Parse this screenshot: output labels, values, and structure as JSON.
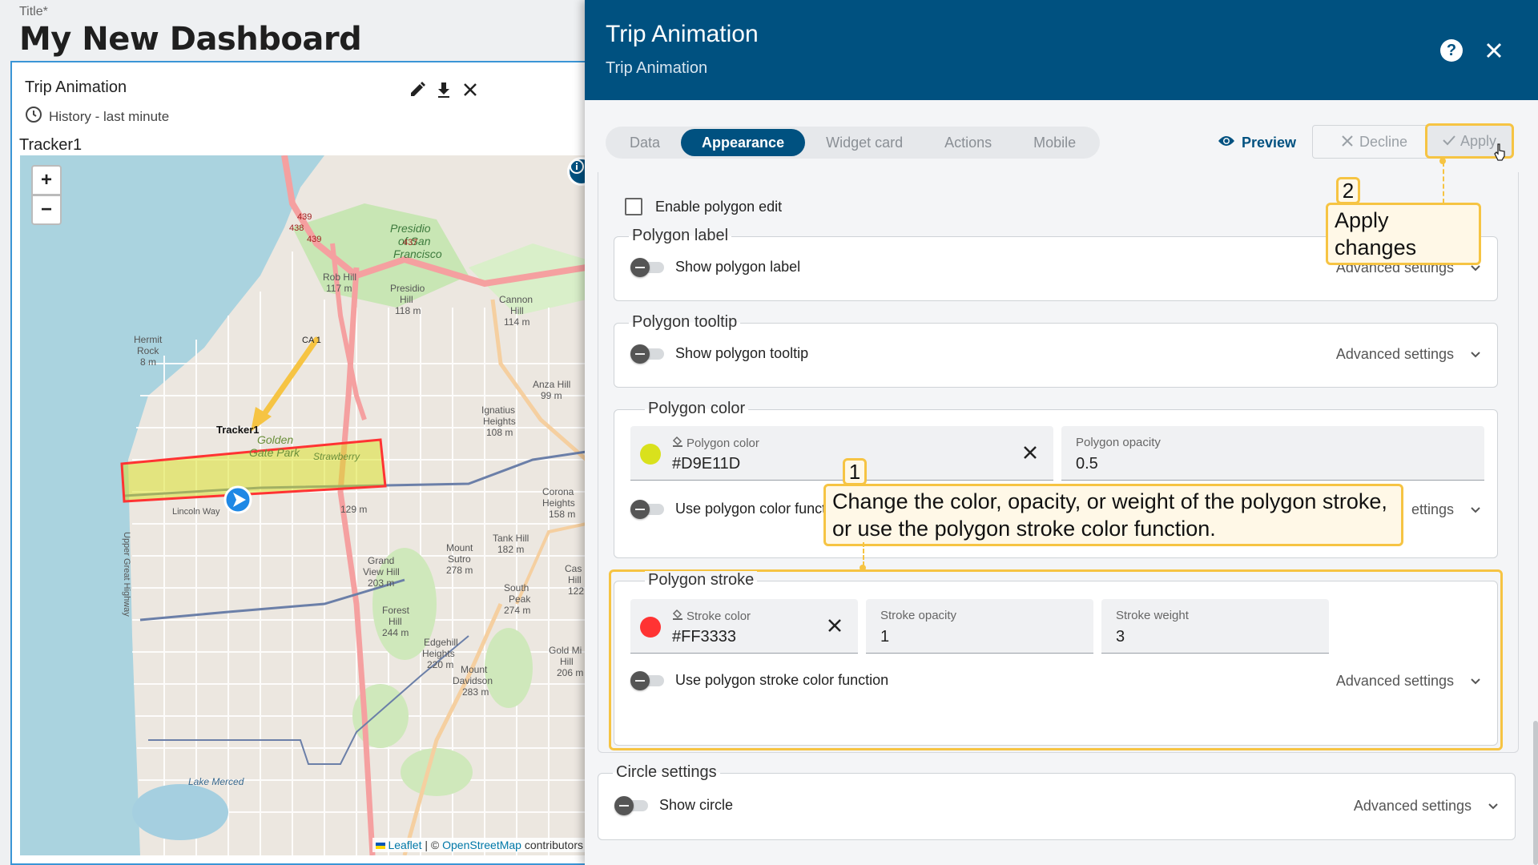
{
  "dashboard": {
    "title_label": "Title*",
    "title": "My New Dashboard"
  },
  "widget": {
    "title": "Trip Animation",
    "timewindow": "History - last minute",
    "entity_label": "Tracker1",
    "tools": [
      "edit-icon",
      "download-icon",
      "close-icon"
    ]
  },
  "map": {
    "zoom_in": "+",
    "zoom_out": "−",
    "polygon_label": "Tracker1",
    "polygon_fill": "#D9E11D",
    "polygon_stroke": "#FF3333",
    "labels": {
      "presidio": "Presidio",
      "of_san": "of San",
      "francisco": "Francisco",
      "rob_hill": "Rob Hill",
      "rob_hill_h": "117 m",
      "presidio_hill": "Presidio",
      "presidio_hill2": "Hill",
      "presidio_hill_h": "118 m",
      "cannon_hill": "Cannon",
      "cannon_hill2": "Hill",
      "cannon_hill_h": "114 m",
      "hermit": "Hermit",
      "rock": "Rock",
      "rock_h": "8 m",
      "anza_hill": "Anza Hill",
      "anza_hill_h": "99 m",
      "ignatius": "Ignatius",
      "heights": "Heights",
      "heights_h": "108 m",
      "golden": "Golden",
      "gate_park": "Gate Park",
      "lincoln_way": "Lincoln Way",
      "corona": "Corona",
      "corona_heights": "Heights",
      "corona_h": "158 m",
      "tank_hill": "Tank Hill",
      "tank_hill_h": "182 m",
      "mount_sutro": "Mount",
      "mount_sutro2": "Sutro",
      "mount_sutro_h": "278 m",
      "grand_view": "Grand",
      "grand_view2": "View Hill",
      "grand_view_h": "203 m",
      "south_peak": "South",
      "south_peak2": "Peak",
      "south_peak_h": "274 m",
      "forest_hill": "Forest",
      "forest_hill2": "Hill",
      "forest_hill_h": "244 m",
      "edgehill": "Edgehill",
      "edgehill2": "Heights",
      "edgehill_h": "220 m",
      "mount_davidson": "Mount",
      "mount_davidson2": "Davidson",
      "mount_davidson_h": "283 m",
      "lake_merced": "Lake Merced",
      "upper_great_highway": "Upper Great Highway",
      "gold_mine": "Gold Mi",
      "gold_mine2": "Hill",
      "gold_mine_h": "206 m",
      "cas": "Cas",
      "cas2": "Hill",
      "cas_h": "122",
      "ca1": "CA 1",
      "r439a": "439",
      "r438": "438",
      "r439b": "439",
      "r437": "437",
      "h129": "129 m",
      "strawberry": "Strawberry"
    },
    "attribution_leaflet": "Leaflet",
    "attribution_sep": " | © ",
    "attribution_osm": "OpenStreetMap",
    "attribution_rest": " contributors"
  },
  "panel": {
    "title": "Trip Animation",
    "subtitle": "Trip Animation",
    "help": "?",
    "tabs": [
      {
        "label": "Data",
        "active": false
      },
      {
        "label": "Appearance",
        "active": true
      },
      {
        "label": "Widget card",
        "active": false
      },
      {
        "label": "Actions",
        "active": false
      },
      {
        "label": "Mobile",
        "active": false
      }
    ],
    "preview_label": "Preview",
    "decline_label": "Decline",
    "apply_label": "Apply"
  },
  "settings": {
    "enable_polygon_edit": "Enable polygon edit",
    "advanced_settings": "Advanced settings",
    "polygon_label": {
      "legend": "Polygon label",
      "toggle": "Show polygon label"
    },
    "polygon_tooltip": {
      "legend": "Polygon tooltip",
      "toggle": "Show polygon tooltip"
    },
    "polygon_color": {
      "legend": "Polygon color",
      "color_label": "Polygon color",
      "color_value": "#D9E11D",
      "opacity_label": "Polygon opacity",
      "opacity_value": "0.5",
      "function_toggle": "Use polygon color funct",
      "adv_partial": "ettings"
    },
    "polygon_stroke": {
      "legend": "Polygon stroke",
      "color_label": "Stroke color",
      "color_value": "#FF3333",
      "opacity_label": "Stroke opacity",
      "opacity_value": "1",
      "weight_label": "Stroke weight",
      "weight_value": "3",
      "function_toggle": "Use polygon stroke color function"
    },
    "circle": {
      "legend": "Circle settings",
      "toggle": "Show circle"
    }
  },
  "callouts": {
    "one_badge": "1",
    "one_line1": "Change the color, opacity, or weight of the polygon stroke,",
    "one_line2": "or use the polygon stroke color function.",
    "two_badge": "2",
    "two_text": "Apply changes"
  },
  "colors": {
    "header_bg": "#005180",
    "accent": "#005180",
    "callout_border": "#F6C443",
    "polygon_color_swatch": "#D9E11D",
    "stroke_color_swatch": "#FF3333"
  }
}
